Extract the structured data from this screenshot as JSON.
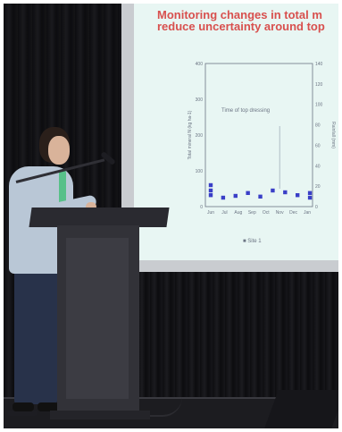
{
  "slide": {
    "title_line1": "Monitoring changes in total m",
    "title_line2": "reduce uncertainty around top",
    "note": "Time of top dressing",
    "legend_label": "■ Site 1",
    "ylabel_left": "Total mineral N (kg ha-1)",
    "ylabel_right": "Rainfall (mm)",
    "x_ticks": [
      "Jun",
      "Jul",
      "Aug",
      "Sep",
      "Oct",
      "Nov",
      "Dec",
      "Jan"
    ],
    "y_left_ticks": [
      "0",
      "100",
      "200",
      "300",
      "400"
    ],
    "y_right_ticks": [
      "0",
      "20",
      "40",
      "60",
      "80",
      "100",
      "120",
      "140"
    ]
  },
  "chart_data": {
    "type": "scatter",
    "x": [
      "Jun",
      "Jul",
      "Aug",
      "Sep",
      "Oct",
      "Nov",
      "Dec",
      "Jan"
    ],
    "ylim": [
      0,
      400
    ],
    "series": [
      {
        "name": "Site 1",
        "points": [
          [
            0,
            60
          ],
          [
            0,
            45
          ],
          [
            0,
            32
          ],
          [
            1,
            25
          ],
          [
            2,
            30
          ],
          [
            3,
            38
          ],
          [
            4,
            28
          ],
          [
            5,
            45
          ],
          [
            6,
            40
          ],
          [
            7,
            32
          ],
          [
            8,
            25
          ],
          [
            8,
            38
          ]
        ]
      }
    ],
    "colors": {
      "point": "#3a3fc7",
      "axis": "#6b7483",
      "note_line": "#8a96a8"
    }
  }
}
